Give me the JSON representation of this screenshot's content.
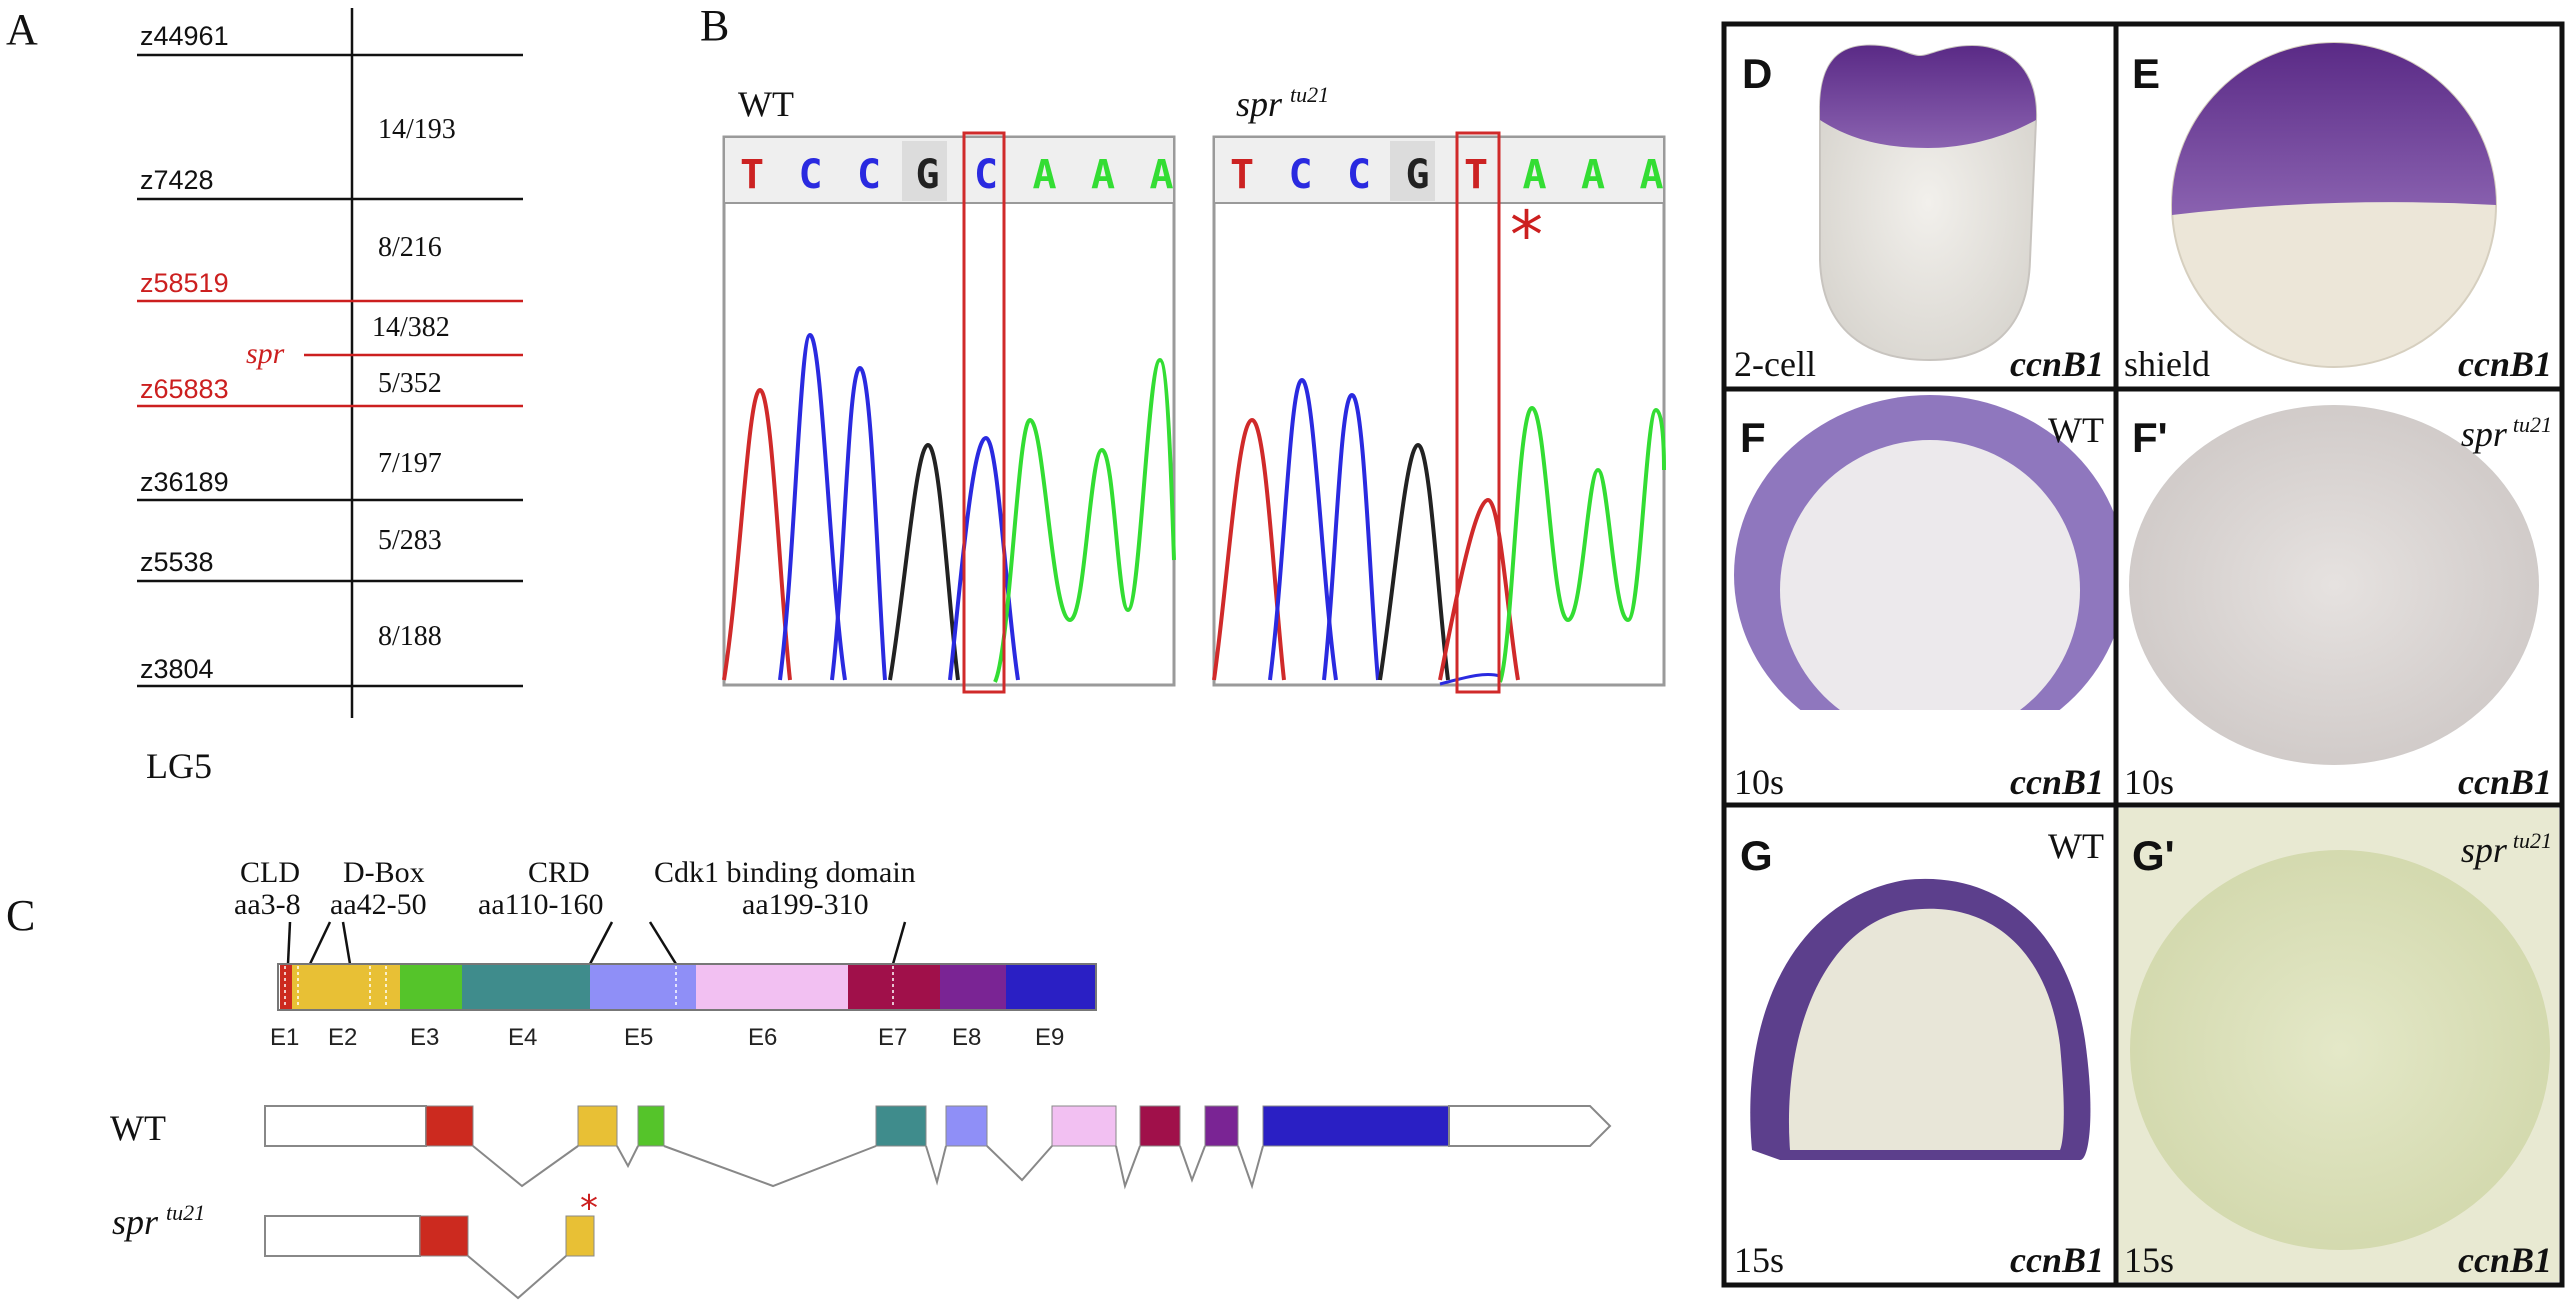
{
  "panel_a": {
    "letter": "A",
    "markers": [
      {
        "name": "z44961",
        "color": "#111111"
      },
      {
        "name": "z7428",
        "color": "#111111"
      },
      {
        "name": "z58519",
        "color": "#cc1f1f"
      },
      {
        "name": "z65883",
        "color": "#cc1f1f"
      },
      {
        "name": "z36189",
        "color": "#111111"
      },
      {
        "name": "z5538",
        "color": "#111111"
      },
      {
        "name": "z3804",
        "color": "#111111"
      }
    ],
    "gene_label": "spr",
    "ratios": [
      "14/193",
      "8/216",
      "14/382",
      "5/352",
      "7/197",
      "5/283",
      "8/188"
    ],
    "linkage_group": "LG5"
  },
  "panel_b": {
    "letter": "B",
    "wt": {
      "title": "WT",
      "bases": [
        "T",
        "C",
        "C",
        "G",
        "C",
        "A",
        "A",
        "A"
      ]
    },
    "mutant": {
      "title": "spr",
      "title_sup": "tu21",
      "bases": [
        "T",
        "C",
        "C",
        "G",
        "T",
        "A",
        "A",
        "A"
      ]
    },
    "mutation_mark": "*",
    "base_colors": {
      "T": "#cc2222",
      "C": "#2a2ae0",
      "G": "#222222",
      "A": "#33dd33"
    }
  },
  "panel_c": {
    "letter": "C",
    "domains": [
      {
        "name": "CLD",
        "range": "aa3-8"
      },
      {
        "name": "D-Box",
        "range": "aa42-50"
      },
      {
        "name": "CRD",
        "range": "aa110-160"
      },
      {
        "name": "Cdk1 binding domain",
        "range": "aa199-310"
      }
    ],
    "exons": [
      {
        "label": "E1",
        "color": "#cc2a1f"
      },
      {
        "label": "E2",
        "color": "#e8c035"
      },
      {
        "label": "E3",
        "color": "#55c42a"
      },
      {
        "label": "E4",
        "color": "#3f8c8c"
      },
      {
        "label": "E5",
        "color": "#8f8ff7"
      },
      {
        "label": "E6",
        "color": "#f2c0f2"
      },
      {
        "label": "E7",
        "color": "#a0104a"
      },
      {
        "label": "E8",
        "color": "#7a2494"
      },
      {
        "label": "E9",
        "color": "#2a1fc4"
      }
    ],
    "wt_label": "WT",
    "mutant_label": "spr",
    "mutant_sup": "tu21",
    "mutation_mark": "*"
  },
  "panel_photos": [
    {
      "letter": "D",
      "stage": "2-cell",
      "gene": "ccnB1",
      "genotype": "",
      "genotype_sup": ""
    },
    {
      "letter": "E",
      "stage": "shield",
      "gene": "ccnB1",
      "genotype": "",
      "genotype_sup": ""
    },
    {
      "letter": "F",
      "stage": "10s",
      "gene": "ccnB1",
      "genotype": "WT",
      "genotype_sup": ""
    },
    {
      "letter": "F'",
      "stage": "10s",
      "gene": "ccnB1",
      "genotype": "spr",
      "genotype_sup": "tu21"
    },
    {
      "letter": "G",
      "stage": "15s",
      "gene": "ccnB1",
      "genotype": "WT",
      "genotype_sup": ""
    },
    {
      "letter": "G'",
      "stage": "15s",
      "gene": "ccnB1",
      "genotype": "spr",
      "genotype_sup": "tu21"
    }
  ]
}
